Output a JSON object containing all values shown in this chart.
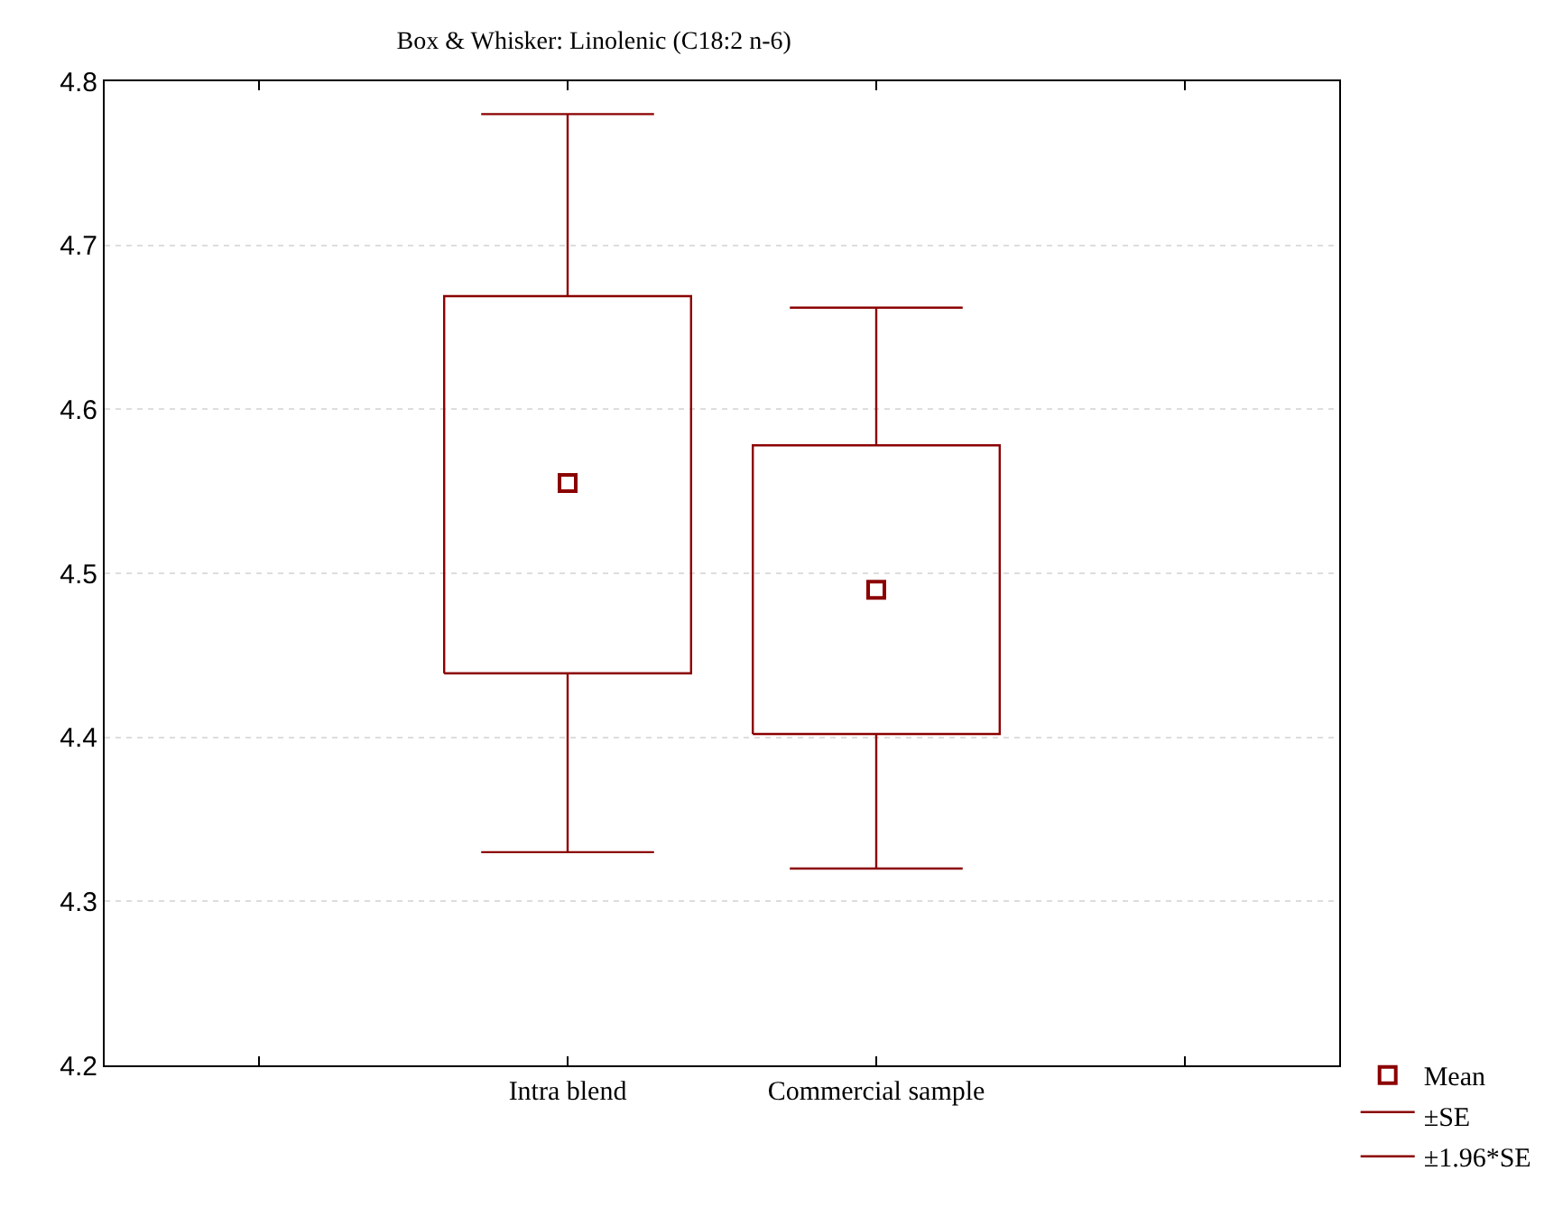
{
  "chart_data": {
    "type": "box",
    "title": "Box & Whisker: Linolenic (C18:2 n-6)",
    "categories": [
      "Intra blend",
      "Commercial sample"
    ],
    "boxes": [
      {
        "low": 4.33,
        "q1": 4.439,
        "q3": 4.669,
        "high": 4.78,
        "mean": 4.555
      },
      {
        "low": 4.32,
        "q1": 4.402,
        "q3": 4.578,
        "high": 4.662,
        "mean": 4.49
      }
    ],
    "color": "#8b0000",
    "ylim": [
      4.2,
      4.8
    ],
    "yticks": [
      4.2,
      4.3,
      4.4,
      4.5,
      4.6,
      4.7,
      4.8
    ],
    "grid": "y",
    "marker": "square",
    "annotations": [
      "Mean",
      "±SE",
      "±1.96*SE"
    ]
  }
}
